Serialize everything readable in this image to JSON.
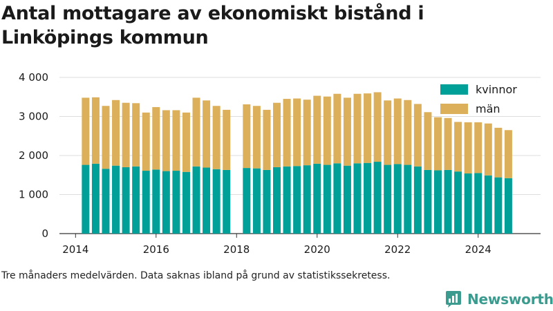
{
  "title": "Antal mottagare av ekonomiskt bistånd i Linköpings kommun",
  "caption": "Tre månaders medelvärden. Data saknas ibland på grund av statistikssekretess.",
  "brand": {
    "name": "Newsworthy",
    "icon": "bar-chart-logo-icon",
    "color": "#3a9b8e"
  },
  "chart_data": {
    "type": "bar",
    "stacked": true,
    "title": "Antal mottagare av ekonomiskt bistånd i Linköpings kommun",
    "x_ticks": [
      "2014",
      "2016",
      "2018",
      "2020",
      "2022",
      "2024"
    ],
    "y_ticks": [
      "0",
      "1 000",
      "2 000",
      "3 000",
      "4 000"
    ],
    "ylim": [
      0,
      4000
    ],
    "xlim": [
      2013.6,
      2025.55
    ],
    "grid": true,
    "legend_position": "top-right",
    "x": [
      2014.25,
      2014.5,
      2014.75,
      2015.0,
      2015.25,
      2015.5,
      2015.75,
      2016.0,
      2016.25,
      2016.5,
      2016.75,
      2017.0,
      2017.25,
      2017.5,
      2017.75,
      2018.25,
      2018.5,
      2018.75,
      2019.0,
      2019.25,
      2019.5,
      2019.75,
      2020.0,
      2020.25,
      2020.5,
      2020.75,
      2021.0,
      2021.25,
      2021.5,
      2021.75,
      2022.0,
      2022.25,
      2022.5,
      2022.75,
      2023.0,
      2023.25,
      2023.5,
      2023.75,
      2024.0,
      2024.25,
      2024.5,
      2024.75
    ],
    "series": [
      {
        "name": "kvinnor",
        "color": "#00a098",
        "values": [
          1760,
          1790,
          1660,
          1740,
          1700,
          1720,
          1610,
          1640,
          1600,
          1610,
          1580,
          1720,
          1690,
          1650,
          1630,
          1680,
          1670,
          1630,
          1700,
          1720,
          1730,
          1750,
          1790,
          1760,
          1800,
          1740,
          1800,
          1810,
          1840,
          1760,
          1780,
          1760,
          1720,
          1630,
          1620,
          1630,
          1590,
          1540,
          1550,
          1490,
          1440,
          1420
        ]
      },
      {
        "name": "män",
        "color": "#dcaf5a",
        "values": [
          1720,
          1700,
          1610,
          1680,
          1650,
          1620,
          1490,
          1600,
          1560,
          1550,
          1520,
          1760,
          1720,
          1620,
          1540,
          1630,
          1600,
          1540,
          1650,
          1730,
          1730,
          1680,
          1740,
          1750,
          1780,
          1740,
          1780,
          1780,
          1780,
          1650,
          1680,
          1660,
          1600,
          1480,
          1360,
          1330,
          1270,
          1310,
          1300,
          1330,
          1270,
          1230
        ]
      }
    ]
  }
}
